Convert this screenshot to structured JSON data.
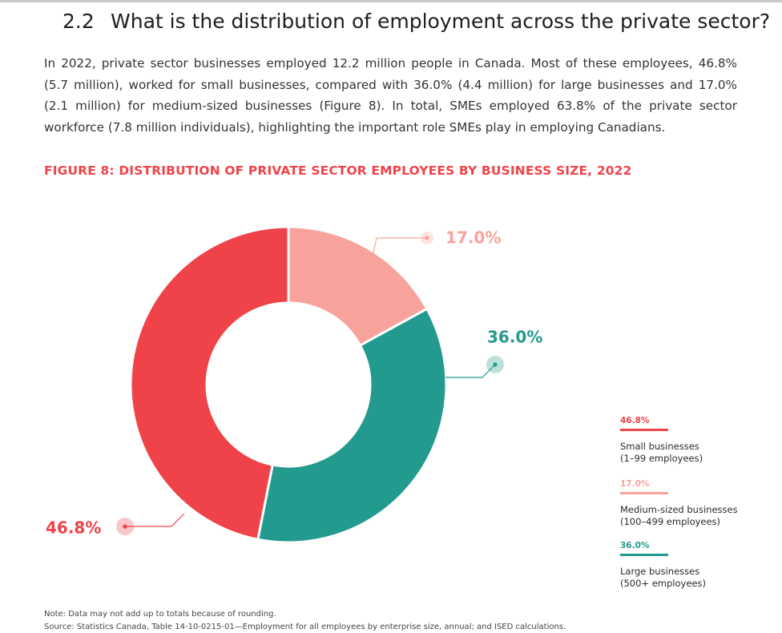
{
  "heading": {
    "number": "2.2",
    "title": "What is the distribution of employment across the private sector?"
  },
  "intro": "In 2022, private sector businesses employed 12.2 million people in Canada. Most of these employees, 46.8% (5.7 million), worked for small businesses, compared with 36.0% (4.4 million) for large businesses and 17.0% (2.1 million) for medium-sized businesses (Figure 8). In total, SMEs employed 63.8% of the private sector workforce (7.8 million individuals), highlighting the important role SMEs play in employing Canadians.",
  "colors": {
    "accent": "#ef4349",
    "small": "#ef4349",
    "medium": "#f7a39c",
    "large": "#229a8d"
  },
  "chart_data": {
    "type": "pie",
    "variant": "donut",
    "title": "FIGURE 8: DISTRIBUTION OF PRIVATE SECTOR EMPLOYEES BY BUSINESS SIZE, 2022",
    "slices": [
      {
        "key": "medium",
        "label": "17.0%",
        "value": 17.0,
        "color": "#f7a39c"
      },
      {
        "key": "large",
        "label": "36.0%",
        "value": 36.0,
        "color": "#229a8d"
      },
      {
        "key": "small",
        "label": "46.8%",
        "value": 46.8,
        "color": "#ef4349"
      }
    ],
    "legend": [
      {
        "pct": "46.8%",
        "line1": "Small businesses",
        "line2": "(1–99 employees)",
        "color": "#ef4349"
      },
      {
        "pct": "17.0%",
        "line1": "Medium-sized businesses",
        "line2": "(100–499 employees)",
        "color": "#f7a39c"
      },
      {
        "pct": "36.0%",
        "line1": "Large businesses",
        "line2": "(500+ employees)",
        "color": "#229a8d"
      }
    ]
  },
  "note": "Note: Data may not add up to totals because of rounding.",
  "source": "Source: Statistics Canada, Table 14-10-0215-01—Employment for all employees by enterprise size, annual; and ISED calculations."
}
